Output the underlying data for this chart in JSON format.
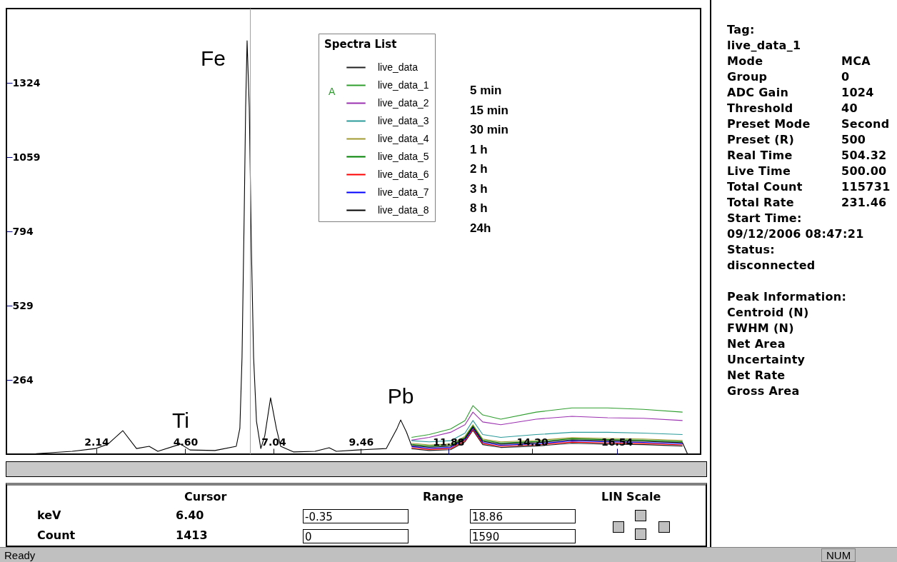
{
  "chart_data": {
    "type": "line",
    "legend_title": "Spectra List",
    "legend": "top",
    "x": [
      0.44,
      0.48,
      1.47,
      2.12,
      2.46,
      2.87,
      3.25,
      3.6,
      3.84,
      4.47,
      4.73,
      5.42,
      6.01,
      6.11,
      6.17,
      6.23,
      6.27,
      6.31,
      6.37,
      6.43,
      6.49,
      6.57,
      6.69,
      6.8,
      6.96,
      7.12,
      7.24,
      7.59,
      8.19,
      8.58,
      8.78,
      9.37,
      10.16,
      10.46,
      10.56,
      10.72,
      10.86,
      11.35,
      11.94,
      12.34,
      12.56,
      12.83,
      13.33,
      14.31,
      15.3,
      16.29,
      17.28,
      18.36,
      18.5
    ],
    "xlim": [
      -0.35,
      18.86
    ],
    "ylim": [
      0,
      1590
    ],
    "xticks": [
      2.14,
      {
        "value": 4.6,
        "label": "4.60"
      },
      7.04,
      9.46,
      11.88,
      {
        "value": 14.2,
        "label": "14.20"
      },
      16.54
    ],
    "yticks": [
      264,
      529,
      794,
      1059,
      1324
    ],
    "series": [
      {
        "name": "live_data",
        "color": "#202020",
        "values": [
          null,
          null,
          null,
          null,
          null,
          null,
          null,
          null,
          null,
          null,
          null,
          null,
          null,
          null,
          null,
          null,
          null,
          null,
          null,
          null,
          null,
          null,
          null,
          null,
          null,
          null,
          null,
          null,
          null,
          null,
          null,
          null,
          null,
          null,
          null,
          null,
          19,
          13,
          16,
          44,
          85,
          34,
          24,
          29,
          39,
          36,
          34,
          29,
          null
        ]
      },
      {
        "name": "live_data_1",
        "color": "#2e9e2e",
        "values": [
          null,
          null,
          null,
          null,
          null,
          null,
          null,
          null,
          null,
          null,
          null,
          null,
          null,
          null,
          null,
          null,
          null,
          null,
          null,
          null,
          null,
          null,
          null,
          null,
          null,
          null,
          null,
          null,
          null,
          null,
          null,
          null,
          null,
          null,
          null,
          null,
          60,
          70,
          90,
          120,
          173,
          140,
          125,
          150,
          165,
          165,
          160,
          150,
          null
        ]
      },
      {
        "name": "live_data_2",
        "color": "#9b30b0",
        "values": [
          null,
          null,
          null,
          null,
          null,
          null,
          null,
          null,
          null,
          null,
          null,
          null,
          null,
          null,
          null,
          null,
          null,
          null,
          null,
          null,
          null,
          null,
          null,
          null,
          null,
          null,
          null,
          null,
          null,
          null,
          null,
          null,
          null,
          null,
          null,
          null,
          50,
          60,
          78,
          105,
          150,
          115,
          105,
          125,
          135,
          130,
          128,
          120,
          null
        ]
      },
      {
        "name": "live_data_3",
        "color": "#2a9a9a",
        "values": [
          null,
          null,
          null,
          null,
          null,
          null,
          null,
          null,
          null,
          null,
          null,
          null,
          null,
          null,
          null,
          null,
          null,
          null,
          null,
          null,
          null,
          null,
          null,
          null,
          null,
          null,
          null,
          null,
          null,
          null,
          null,
          null,
          null,
          null,
          null,
          null,
          48,
          44,
          48,
          75,
          120,
          70,
          60,
          70,
          78,
          78,
          75,
          70,
          null
        ]
      },
      {
        "name": "live_data_4",
        "color": "#a09a30",
        "values": [
          null,
          null,
          null,
          null,
          null,
          null,
          null,
          null,
          null,
          null,
          null,
          null,
          null,
          null,
          null,
          null,
          null,
          null,
          null,
          null,
          null,
          null,
          null,
          null,
          null,
          null,
          null,
          null,
          null,
          null,
          null,
          null,
          null,
          null,
          null,
          null,
          39,
          33,
          36,
          64,
          105,
          54,
          44,
          49,
          59,
          56,
          54,
          49,
          null
        ]
      },
      {
        "name": "live_data_5",
        "color": "#008000",
        "values": [
          null,
          null,
          null,
          null,
          null,
          null,
          null,
          null,
          null,
          null,
          null,
          null,
          null,
          null,
          null,
          null,
          null,
          null,
          null,
          null,
          null,
          null,
          null,
          null,
          null,
          null,
          null,
          null,
          null,
          null,
          null,
          null,
          null,
          null,
          null,
          null,
          35,
          29,
          32,
          60,
          101,
          50,
          40,
          45,
          55,
          52,
          50,
          45,
          null
        ]
      },
      {
        "name": "live_data_6",
        "color": "#ff0000",
        "values": [
          null,
          null,
          null,
          null,
          null,
          null,
          null,
          null,
          null,
          null,
          null,
          null,
          null,
          null,
          null,
          null,
          null,
          null,
          null,
          null,
          null,
          null,
          null,
          null,
          null,
          null,
          null,
          null,
          null,
          null,
          null,
          null,
          null,
          null,
          null,
          null,
          23,
          17,
          20,
          48,
          89,
          38,
          28,
          33,
          43,
          40,
          38,
          33,
          null
        ]
      },
      {
        "name": "live_data_7",
        "color": "#0000ff",
        "values": [
          null,
          null,
          null,
          null,
          null,
          null,
          null,
          null,
          null,
          null,
          null,
          null,
          null,
          null,
          null,
          null,
          null,
          null,
          null,
          null,
          null,
          null,
          null,
          null,
          null,
          null,
          null,
          null,
          null,
          null,
          null,
          null,
          null,
          null,
          null,
          null,
          27,
          21,
          24,
          52,
          93,
          42,
          32,
          37,
          47,
          44,
          42,
          37,
          null
        ]
      },
      {
        "name": "live_data_8",
        "color": "#000000",
        "values": [
          0,
          2,
          10,
          20,
          36,
          84,
          20,
          28,
          10,
          36,
          15,
          13,
          28,
          92,
          346,
          856,
          1238,
          1475,
          1238,
          729,
          346,
          117,
          20,
          66,
          201,
          92,
          28,
          8,
          10,
          23,
          10,
          15,
          20,
          92,
          122,
          79,
          31,
          25,
          28,
          56,
          97,
          46,
          36,
          41,
          51,
          48,
          46,
          41,
          0
        ]
      }
    ],
    "ref_lines": [
      {
        "axis": "x",
        "value": 6.4,
        "color": "#a0a0a0"
      }
    ],
    "annotations": [
      {
        "text": "Fe",
        "x": 6.31,
        "y": 1475
      },
      {
        "text": "Ti",
        "x": 4.47,
        "y": 36
      },
      {
        "text": "Pb",
        "x": 10.56,
        "y": 122
      },
      "5 min",
      "15 min",
      "30 min",
      "1 h",
      "2 h",
      "3 h",
      "8 h",
      "24h",
      "A",
      "Tag:",
      "live_data_1",
      "Mode\tMCA",
      "Group\t0",
      "ADC Gain\t1024",
      "Threshold\t40",
      "Preset Mode\tSecond",
      "Preset (R)\t500",
      "Real Time\t504.32",
      "Live Time\t500.00",
      "Total Count\t115731",
      "Total Rate\t231.46",
      "Start Time:",
      "09/12/2006 08:47:21",
      "Status:",
      "disconnected",
      "Peak Information:",
      "Centroid (N)",
      "FWHM (N)",
      "Net Area",
      "Uncertainty",
      "Net Rate",
      "Gross Area",
      "Cursor",
      "Range",
      "LIN Scale",
      "keV",
      "6.40",
      "-0.35",
      "18.86",
      "Count",
      "1413",
      "0",
      "1590",
      "Ready",
      "NUM"
    ]
  }
}
